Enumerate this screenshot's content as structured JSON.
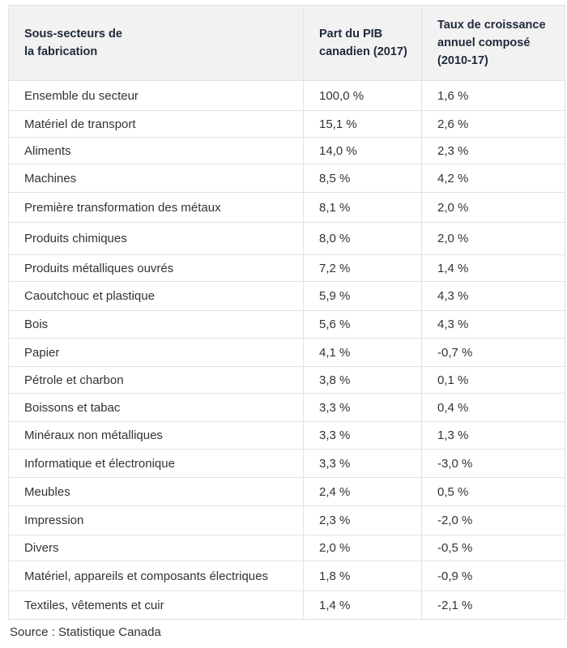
{
  "table": {
    "headers": [
      [
        "Sous-secteurs de",
        "la fabrication"
      ],
      [
        "Part du PIB",
        "canadien (2017)"
      ],
      [
        "Taux de croissance",
        "annuel composé",
        "(2010-17)"
      ]
    ],
    "rows": [
      [
        "Ensemble du secteur",
        "100,0 %",
        "1,6 %"
      ],
      [
        "Matériel de transport",
        "15,1 %",
        "2,6 %"
      ],
      [
        "Aliments",
        "14,0 %",
        "2,3 %"
      ],
      [
        "Machines",
        "8,5 %",
        "4,2 %"
      ],
      [
        "Première transformation des métaux",
        "8,1 %",
        "2,0 %"
      ],
      [
        "Produits chimiques",
        "8,0 %",
        "2,0 %"
      ],
      [
        "Produits métalliques ouvrés",
        "7,2 %",
        "1,4 %"
      ],
      [
        "Caoutchouc et plastique",
        "5,9 %",
        "4,3 %"
      ],
      [
        "Bois",
        "5,6 %",
        "4,3 %"
      ],
      [
        "Papier",
        "4,1 %",
        "-0,7 %"
      ],
      [
        "Pétrole et charbon",
        "3,8 %",
        "0,1 %"
      ],
      [
        "Boissons et tabac",
        "3,3 %",
        "0,4 %"
      ],
      [
        "Minéraux non métalliques",
        "3,3 %",
        "1,3 %"
      ],
      [
        "Informatique et électronique",
        "3,3 %",
        "-3,0 %"
      ],
      [
        "Meubles",
        "2,4 %",
        "0,5 %"
      ],
      [
        "Impression",
        "2,3 %",
        "-2,0 %"
      ],
      [
        "Divers",
        "2,0 %",
        "-0,5 %"
      ],
      [
        "Matériel, appareils et composants électriques",
        "1,8 %",
        "-0,9 %"
      ],
      [
        "Textiles, vêtements et cuir",
        "1,4 %",
        "-2,1 %"
      ]
    ]
  },
  "caption": "Source : Statistique Canada"
}
